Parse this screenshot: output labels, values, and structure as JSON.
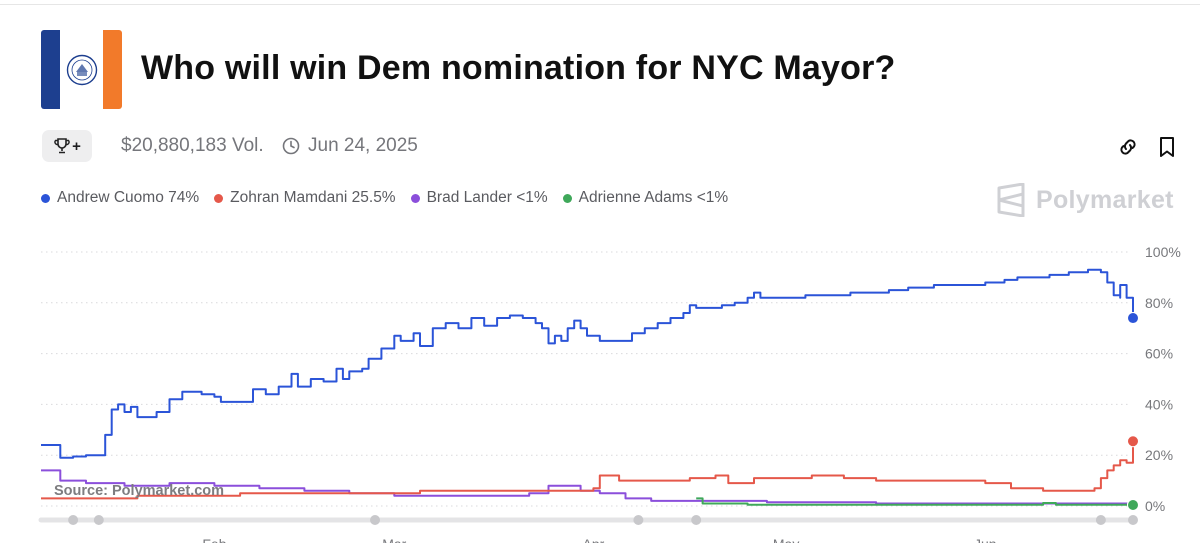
{
  "header": {
    "title": "Who will win Dem nomination for NYC Mayor?",
    "volume": "$20,880,183 Vol.",
    "date": "Jun 24, 2025",
    "trophy_suffix": "+"
  },
  "brand": {
    "name": "Polymarket"
  },
  "icons": {
    "flag": "nyc-flag-icon",
    "trophy": "trophy-icon",
    "clock": "clock-icon",
    "link": "link-icon",
    "bookmark": "bookmark-icon",
    "brand": "polymarket-logo-icon"
  },
  "legend": [
    {
      "label": "Andrew Cuomo 74%",
      "color": "#2b54d8"
    },
    {
      "label": "Zohran Mamdani 25.5%",
      "color": "#e5584a"
    },
    {
      "label": "Brad Lander <1%",
      "color": "#8b4fdb"
    },
    {
      "label": "Adrienne Adams <1%",
      "color": "#3fa85a"
    }
  ],
  "watermark": "Source: Polymarket.com",
  "chart_data": {
    "type": "line",
    "x_range": [
      "2025-01-05",
      "2025-06-24"
    ],
    "ylim": [
      0,
      100
    ],
    "y_ticks": [
      {
        "value": 100,
        "label": "100%"
      },
      {
        "value": 80,
        "label": "80%"
      },
      {
        "value": 60,
        "label": "60%"
      },
      {
        "value": 40,
        "label": "40%"
      },
      {
        "value": 20,
        "label": "20%"
      },
      {
        "value": 0,
        "label": "0%"
      }
    ],
    "x_ticks": [
      {
        "date": "2025-02-01",
        "label": "Feb"
      },
      {
        "date": "2025-03-01",
        "label": "Mar"
      },
      {
        "date": "2025-04-01",
        "label": "Apr"
      },
      {
        "date": "2025-05-01",
        "label": "May"
      },
      {
        "date": "2025-06-01",
        "label": "Jun"
      }
    ],
    "grid": true,
    "legend_position": "top-left",
    "series": [
      {
        "name": "Andrew Cuomo",
        "color": "#2b54d8",
        "end_value": 74,
        "points": [
          [
            "2025-01-05",
            24
          ],
          [
            "2025-01-07",
            24
          ],
          [
            "2025-01-08",
            19
          ],
          [
            "2025-01-10",
            19.5
          ],
          [
            "2025-01-12",
            20
          ],
          [
            "2025-01-14",
            20
          ],
          [
            "2025-01-15",
            28
          ],
          [
            "2025-01-16",
            38
          ],
          [
            "2025-01-17",
            40
          ],
          [
            "2025-01-18",
            37
          ],
          [
            "2025-01-19",
            39
          ],
          [
            "2025-01-20",
            35
          ],
          [
            "2025-01-22",
            35
          ],
          [
            "2025-01-23",
            37
          ],
          [
            "2025-01-25",
            42
          ],
          [
            "2025-01-27",
            45
          ],
          [
            "2025-01-30",
            44
          ],
          [
            "2025-02-01",
            43
          ],
          [
            "2025-02-02",
            41
          ],
          [
            "2025-02-06",
            41
          ],
          [
            "2025-02-07",
            46
          ],
          [
            "2025-02-09",
            44
          ],
          [
            "2025-02-11",
            47
          ],
          [
            "2025-02-13",
            52
          ],
          [
            "2025-02-14",
            47
          ],
          [
            "2025-02-16",
            50
          ],
          [
            "2025-02-18",
            49
          ],
          [
            "2025-02-20",
            54
          ],
          [
            "2025-02-21",
            50
          ],
          [
            "2025-02-22",
            53
          ],
          [
            "2025-02-24",
            54
          ],
          [
            "2025-02-25",
            58
          ],
          [
            "2025-02-27",
            62
          ],
          [
            "2025-03-01",
            67
          ],
          [
            "2025-03-02",
            65
          ],
          [
            "2025-03-04",
            68
          ],
          [
            "2025-03-05",
            63
          ],
          [
            "2025-03-07",
            70
          ],
          [
            "2025-03-09",
            72
          ],
          [
            "2025-03-11",
            70
          ],
          [
            "2025-03-13",
            74
          ],
          [
            "2025-03-15",
            71
          ],
          [
            "2025-03-17",
            74
          ],
          [
            "2025-03-19",
            75
          ],
          [
            "2025-03-21",
            74
          ],
          [
            "2025-03-23",
            72
          ],
          [
            "2025-03-24",
            70
          ],
          [
            "2025-03-25",
            64
          ],
          [
            "2025-03-26",
            67
          ],
          [
            "2025-03-27",
            65
          ],
          [
            "2025-03-28",
            70
          ],
          [
            "2025-03-29",
            73
          ],
          [
            "2025-03-30",
            70
          ],
          [
            "2025-03-31",
            67
          ],
          [
            "2025-04-02",
            65
          ],
          [
            "2025-04-05",
            65
          ],
          [
            "2025-04-07",
            68
          ],
          [
            "2025-04-09",
            70
          ],
          [
            "2025-04-11",
            72
          ],
          [
            "2025-04-13",
            74
          ],
          [
            "2025-04-15",
            76
          ],
          [
            "2025-04-16",
            79
          ],
          [
            "2025-04-17",
            78
          ],
          [
            "2025-04-19",
            78
          ],
          [
            "2025-04-21",
            79
          ],
          [
            "2025-04-23",
            80
          ],
          [
            "2025-04-25",
            82
          ],
          [
            "2025-04-26",
            84
          ],
          [
            "2025-04-27",
            82
          ],
          [
            "2025-04-30",
            82
          ],
          [
            "2025-05-04",
            83
          ],
          [
            "2025-05-08",
            83
          ],
          [
            "2025-05-11",
            84
          ],
          [
            "2025-05-14",
            84
          ],
          [
            "2025-05-17",
            85
          ],
          [
            "2025-05-20",
            86
          ],
          [
            "2025-05-24",
            87
          ],
          [
            "2025-05-28",
            87
          ],
          [
            "2025-06-01",
            88
          ],
          [
            "2025-06-04",
            89
          ],
          [
            "2025-06-06",
            90
          ],
          [
            "2025-06-08",
            90
          ],
          [
            "2025-06-11",
            91
          ],
          [
            "2025-06-14",
            92
          ],
          [
            "2025-06-17",
            93
          ],
          [
            "2025-06-19",
            92
          ],
          [
            "2025-06-20",
            88
          ],
          [
            "2025-06-21",
            85
          ],
          [
            "2025-06-21",
            83
          ],
          [
            "2025-06-22",
            82
          ],
          [
            "2025-06-22",
            87
          ],
          [
            "2025-06-23",
            82
          ],
          [
            "2025-06-24",
            81
          ],
          [
            "2025-06-24",
            74
          ]
        ]
      },
      {
        "name": "Zohran Mamdani",
        "color": "#e5584a",
        "end_value": 25.5,
        "points": [
          [
            "2025-01-05",
            3
          ],
          [
            "2025-01-20",
            4
          ],
          [
            "2025-02-05",
            5
          ],
          [
            "2025-02-20",
            5
          ],
          [
            "2025-03-05",
            6
          ],
          [
            "2025-03-20",
            6
          ],
          [
            "2025-04-01",
            7
          ],
          [
            "2025-04-02",
            12
          ],
          [
            "2025-04-05",
            10
          ],
          [
            "2025-04-10",
            10
          ],
          [
            "2025-04-16",
            11
          ],
          [
            "2025-04-20",
            12
          ],
          [
            "2025-04-22",
            9
          ],
          [
            "2025-04-26",
            11
          ],
          [
            "2025-05-01",
            11
          ],
          [
            "2025-05-05",
            12
          ],
          [
            "2025-05-10",
            11
          ],
          [
            "2025-05-15",
            10
          ],
          [
            "2025-05-20",
            10
          ],
          [
            "2025-05-25",
            10
          ],
          [
            "2025-06-01",
            9
          ],
          [
            "2025-06-05",
            7
          ],
          [
            "2025-06-10",
            6
          ],
          [
            "2025-06-15",
            6
          ],
          [
            "2025-06-18",
            7
          ],
          [
            "2025-06-19",
            11
          ],
          [
            "2025-06-20",
            14
          ],
          [
            "2025-06-21",
            16
          ],
          [
            "2025-06-22",
            18
          ],
          [
            "2025-06-23",
            17
          ],
          [
            "2025-06-24",
            19
          ],
          [
            "2025-06-24",
            25.5
          ]
        ]
      },
      {
        "name": "Brad Lander",
        "color": "#8b4fdb",
        "end_value": 0.5,
        "points": [
          [
            "2025-01-05",
            14
          ],
          [
            "2025-01-08",
            10
          ],
          [
            "2025-01-12",
            9
          ],
          [
            "2025-01-18",
            8
          ],
          [
            "2025-01-25",
            9
          ],
          [
            "2025-02-01",
            8
          ],
          [
            "2025-02-08",
            7
          ],
          [
            "2025-02-15",
            6
          ],
          [
            "2025-02-22",
            5
          ],
          [
            "2025-03-01",
            4
          ],
          [
            "2025-03-08",
            4
          ],
          [
            "2025-03-15",
            4
          ],
          [
            "2025-03-22",
            5
          ],
          [
            "2025-03-25",
            8
          ],
          [
            "2025-03-30",
            6
          ],
          [
            "2025-04-02",
            5
          ],
          [
            "2025-04-06",
            3
          ],
          [
            "2025-04-10",
            2
          ],
          [
            "2025-04-15",
            2
          ],
          [
            "2025-04-20",
            2
          ],
          [
            "2025-04-28",
            1.5
          ],
          [
            "2025-05-05",
            1.5
          ],
          [
            "2025-05-15",
            1
          ],
          [
            "2025-05-25",
            1
          ],
          [
            "2025-06-05",
            1
          ],
          [
            "2025-06-15",
            1
          ],
          [
            "2025-06-24",
            0.5
          ]
        ]
      },
      {
        "name": "Adrienne Adams",
        "color": "#3fa85a",
        "end_value": 0.4,
        "points": [
          [
            "2025-04-17",
            3
          ],
          [
            "2025-04-18",
            1
          ],
          [
            "2025-04-25",
            0.5
          ],
          [
            "2025-05-05",
            0.5
          ],
          [
            "2025-05-15",
            0.5
          ],
          [
            "2025-05-25",
            0.5
          ],
          [
            "2025-06-05",
            0.5
          ],
          [
            "2025-06-10",
            1.2
          ],
          [
            "2025-06-12",
            0.5
          ],
          [
            "2025-06-24",
            0.4
          ]
        ]
      }
    ],
    "axis_markers": [
      "2025-01-10",
      "2025-01-14",
      "2025-02-26",
      "2025-04-08",
      "2025-04-17",
      "2025-06-19",
      "2025-06-24"
    ]
  }
}
